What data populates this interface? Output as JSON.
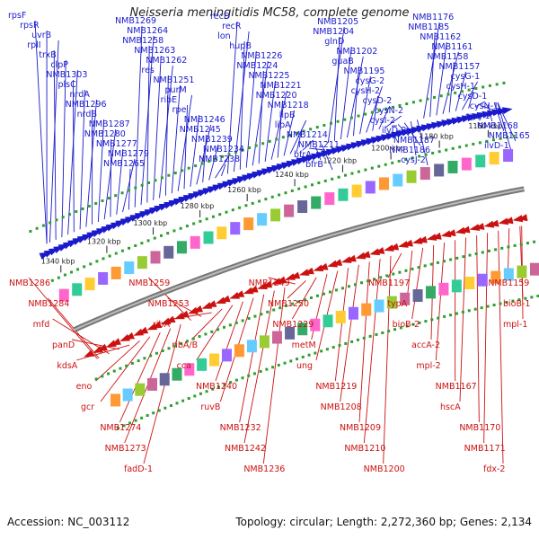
{
  "title": "Neisseria meningitidis MC58, complete genome",
  "footer": {
    "accession": "Accession: NC_003112",
    "summary": "Topology: circular; Length: 2,272,360 bp; Genes: 2,134"
  },
  "colors": {
    "forward": "#1a1acc",
    "reverse": "#cc1111",
    "backbone": "#888888",
    "dots": "#2e9e2e"
  },
  "kbp_ticks": [
    {
      "label": "1340 kbp",
      "kbp": 1340
    },
    {
      "label": "1320 kbp",
      "kbp": 1320
    },
    {
      "label": "1300 kbp",
      "kbp": 1300
    },
    {
      "label": "1280 kbp",
      "kbp": 1280
    },
    {
      "label": "1260 kbp",
      "kbp": 1260
    },
    {
      "label": "1240 kbp",
      "kbp": 1240
    },
    {
      "label": "1220 kbp",
      "kbp": 1220
    },
    {
      "label": "1200 kbp",
      "kbp": 1200
    },
    {
      "label": "1180 kbp",
      "kbp": 1180
    },
    {
      "label": "1160 kbp",
      "kbp": 1160
    }
  ],
  "forward_genes": [
    "rpsF",
    "rpsR",
    "uvrB",
    "rplI",
    "trxB",
    "clpP",
    "NMB1303",
    "plsC",
    "nrdA",
    "NMB1296",
    "nrdB",
    "NMB1287",
    "NMB1280",
    "NMB1277",
    "NMB1279",
    "NMB1265",
    "NMB1269",
    "NMB1264",
    "NMB1258",
    "NMB1263",
    "NMB1262",
    "res",
    "NMB1251",
    "purM",
    "ribE",
    "rpe",
    "NMB1246",
    "NMB1245",
    "NMB1239",
    "NMB1234",
    "NMB1238",
    "recD",
    "recR",
    "lon",
    "hupB",
    "NMB1226",
    "NMB1224",
    "NMB1225",
    "NMB1221",
    "NMB1220",
    "NMB1218",
    "lipB",
    "lipA",
    "NMB1214",
    "NMB1211",
    "bfrA",
    "bfrB",
    "NMB1205",
    "NMB1204",
    "glnD",
    "NMB1202",
    "guaB",
    "NMB1195",
    "cysG-2",
    "cysH-2",
    "cysD-2",
    "cysN-2",
    "cysI-2",
    "ilvD-2",
    "NMB1187",
    "NMB1186",
    "cysJ-2",
    "NMB1176",
    "NMB1185",
    "NMB1162",
    "NMB1161",
    "NMB1158",
    "NMB1157",
    "cysG-1",
    "cysH-1",
    "cysD-1",
    "cysN-1",
    "cysJ-1",
    "NMB1168",
    "NMB1165",
    "ilvD-1"
  ],
  "reverse_genes": [
    "NMB1286",
    "NMB1284",
    "mfd",
    "panD",
    "kdsA",
    "eno",
    "gcr",
    "NMB1274",
    "NMB1273",
    "fadD-1",
    "NMB1259",
    "NMB1253",
    "ribA",
    "ribA/B",
    "cca",
    "NMB1240",
    "ruvB",
    "NMB1232",
    "NMB1242",
    "NMB1236",
    "NMB1249",
    "NMB1250",
    "NMB1229",
    "metM",
    "ung",
    "NMB1219",
    "NMB1208",
    "NMB1209",
    "NMB1210",
    "NMB1200",
    "NMB1197",
    "typA",
    "bioB-2",
    "accA-2",
    "mpl-2",
    "NMB1167",
    "hscA",
    "NMB1170",
    "NMB1171",
    "fdx-2",
    "NMB1159",
    "bioB-1",
    "mpl-1"
  ]
}
